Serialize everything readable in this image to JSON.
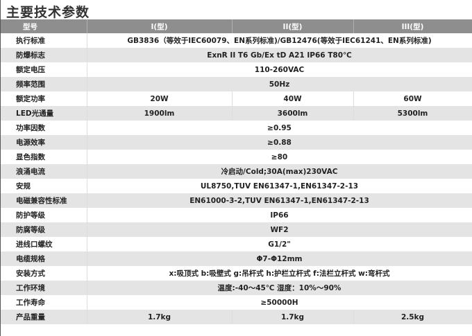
{
  "title": "主要技术参数",
  "header": [
    "型号",
    "I(型)",
    "II(型)",
    "III(型)"
  ],
  "rows": [
    {
      "label": "执行标准",
      "values": [
        "GB3836（等效于IEC60079、EN系列标准)/GB12476(等效于IEC61241、EN系列标准)"
      ]
    },
    {
      "label": "防爆标志",
      "values": [
        "ExnR II T6 Gb/Ex tD A21 IP66 T80℃"
      ]
    },
    {
      "label": "额定电压",
      "values": [
        "110-260VAC"
      ]
    },
    {
      "label": "频率范围",
      "values": [
        "50Hz"
      ]
    },
    {
      "label": "额定功率",
      "values": [
        "20W",
        "40W",
        "60W"
      ]
    },
    {
      "label": "LED光通量",
      "values": [
        "1900lm",
        "3600lm",
        "5300lm"
      ]
    },
    {
      "label": "功率因数",
      "values": [
        "≥0.95"
      ]
    },
    {
      "label": "电源效率",
      "values": [
        "≥0.88"
      ]
    },
    {
      "label": "显色指数",
      "values": [
        "≥80"
      ]
    },
    {
      "label": "浪涌电流",
      "values": [
        "冷启动/Cold;30A(max)230VAC"
      ]
    },
    {
      "label": "安规",
      "values": [
        "UL8750,TUV EN61347-1,EN61347-2-13"
      ]
    },
    {
      "label": "电磁兼容性标准",
      "values": [
        "EN61000-3-2,TUV EN61347-1,EN61347-2-13"
      ]
    },
    {
      "label": "防护等级",
      "values": [
        "IP66"
      ]
    },
    {
      "label": "防腐等级",
      "values": [
        "WF2"
      ]
    },
    {
      "label": "进线口螺纹",
      "values": [
        "G1/2\""
      ]
    },
    {
      "label": "电缆规格",
      "values": [
        "Φ7-Φ12mm"
      ]
    },
    {
      "label": "安装方式",
      "values": [
        "x:吸顶式  b:吸壁式  g:吊杆式  h:护栏立杆式  f:法栏立杆式  w:弯杆式"
      ]
    },
    {
      "label": "工作环境",
      "values": [
        "温度:-40～45℃ 湿度：10%～90%"
      ]
    },
    {
      "label": "工作寿命",
      "values": [
        "≥50000H"
      ]
    },
    {
      "label": "产品重量",
      "values": [
        "1.7kg",
        "1.7kg",
        "2.5kg"
      ]
    }
  ]
}
